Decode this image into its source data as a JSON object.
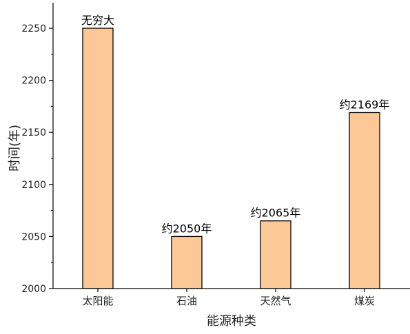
{
  "chart_data": {
    "type": "bar",
    "categories": [
      "太阳能",
      "石油",
      "天然气",
      "煤炭"
    ],
    "values": [
      2250,
      2050,
      2065,
      2169
    ],
    "data_labels": [
      "无穷大",
      "约2050年",
      "约2065年",
      "约2169年"
    ],
    "xlabel": "能源种类",
    "ylabel": "时间(年)",
    "ylim": [
      2000,
      2250
    ],
    "yticks": [
      2000,
      2050,
      2100,
      2150,
      2200,
      2250
    ],
    "grid": false,
    "bar_color": "#FCC896",
    "bar_edge_color": "#000000"
  }
}
